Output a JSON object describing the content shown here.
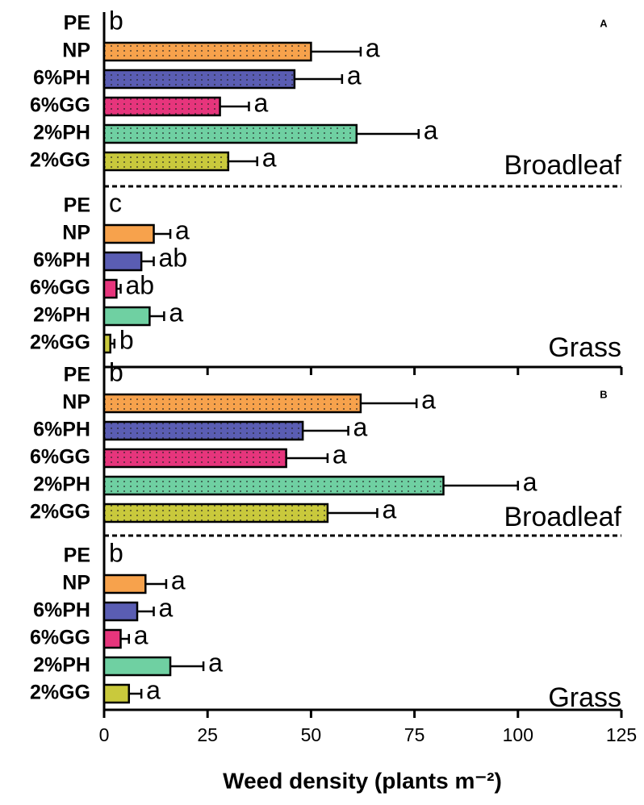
{
  "chart_data": {
    "type": "bar",
    "orientation": "horizontal",
    "xlabel": "Weed density (plants m⁻²)",
    "xlim": [
      0,
      125
    ],
    "xticks": [
      0,
      25,
      50,
      75,
      100,
      125
    ],
    "categories": [
      "PE",
      "NP",
      "6%PH",
      "6%GG",
      "2%PH",
      "2%GG"
    ],
    "colors": [
      "#000000",
      "#f7a24c",
      "#5a5db3",
      "#e6357c",
      "#6fd0a2",
      "#c9c93c"
    ],
    "panels": [
      {
        "label": "A",
        "groups": [
          {
            "name": "Broadleaf",
            "pattern": "dotted",
            "values": [
              0,
              50,
              46,
              28,
              61,
              30
            ],
            "errors": [
              0,
              12,
              11.5,
              7,
              15,
              7
            ],
            "letters": [
              "b",
              "a",
              "a",
              "a",
              "a",
              "a"
            ]
          },
          {
            "name": "Grass",
            "pattern": "solid",
            "values": [
              0,
              12,
              9,
              3,
              11,
              1.5
            ],
            "errors": [
              0,
              4,
              3,
              1,
              3.5,
              1
            ],
            "letters": [
              "c",
              "a",
              "ab",
              "ab",
              "a",
              "b"
            ]
          }
        ]
      },
      {
        "label": "B",
        "groups": [
          {
            "name": "Broadleaf",
            "pattern": "dotted",
            "values": [
              0,
              62,
              48,
              44,
              82,
              54
            ],
            "errors": [
              0,
              13.5,
              11,
              10,
              18,
              12
            ],
            "letters": [
              "b",
              "a",
              "a",
              "a",
              "a",
              "a"
            ]
          },
          {
            "name": "Grass",
            "pattern": "solid",
            "values": [
              0,
              10,
              8,
              4,
              16,
              6
            ],
            "errors": [
              0,
              5,
              4,
              2,
              8,
              3
            ],
            "letters": [
              "b",
              "a",
              "a",
              "a",
              "a",
              "a"
            ]
          }
        ]
      }
    ]
  }
}
